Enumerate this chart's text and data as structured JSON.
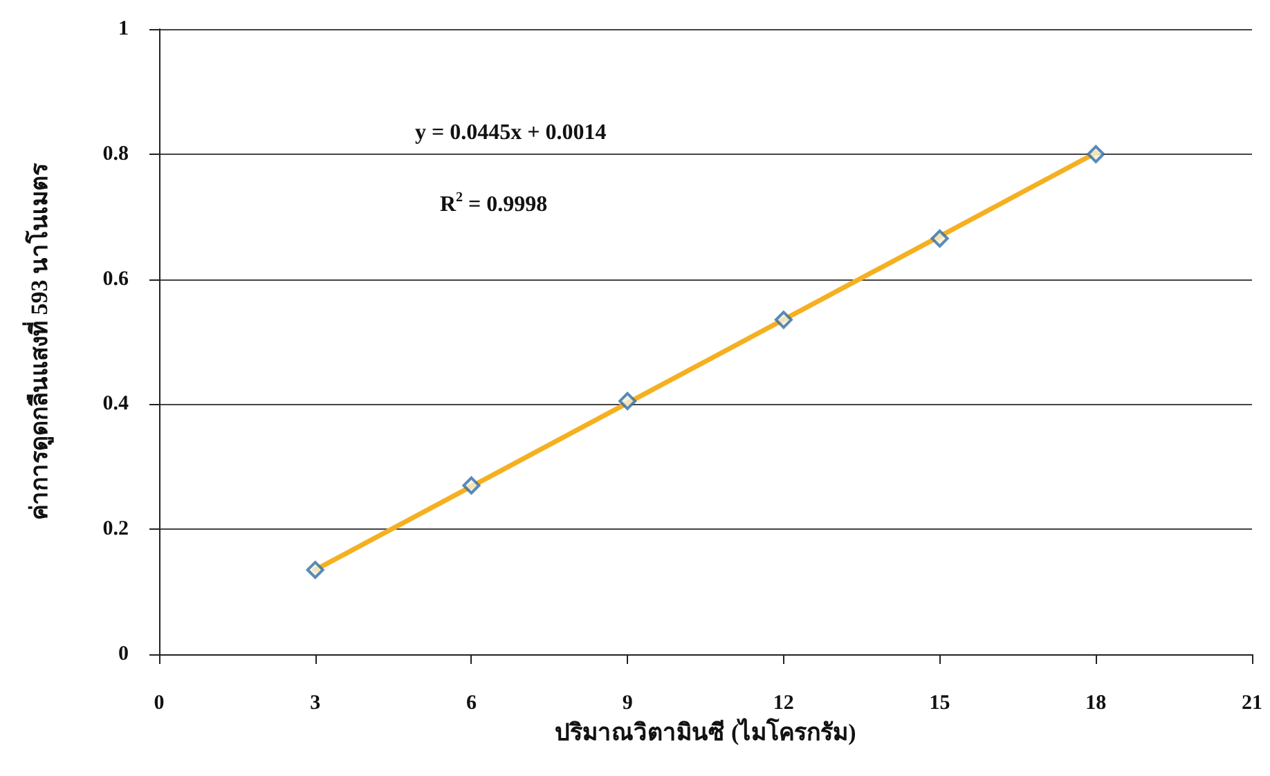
{
  "chart_data": {
    "type": "scatter",
    "xlabel": "ปริมาณวิตามินซี (ไมโครกรัม)",
    "ylabel": "ค่าการดูดกลืนแสงที่ 593 นาโนเมตร",
    "series": [
      {
        "marker": "diamond",
        "color": "#2f6ea8",
        "x": [
          3,
          6,
          9,
          12,
          15,
          18
        ],
        "values": [
          0.135,
          0.27,
          0.405,
          0.535,
          0.665,
          0.8
        ]
      },
      {
        "type": "line",
        "color": "#f5b020",
        "x": [
          3,
          18
        ],
        "values": [
          0.135,
          0.802
        ]
      }
    ],
    "annotations": [
      "y = 0.0445x + 0.0014",
      "R$^{2}$ = 0.9998"
    ],
    "xlim": [
      0,
      21
    ],
    "xticks": [
      0,
      3,
      6,
      9,
      12,
      15,
      18,
      21
    ],
    "ylim": [
      0,
      1
    ],
    "yticks": [
      0,
      0.2,
      0.4,
      0.6,
      0.8,
      1
    ],
    "grid": "y",
    "line_style": "solid"
  }
}
